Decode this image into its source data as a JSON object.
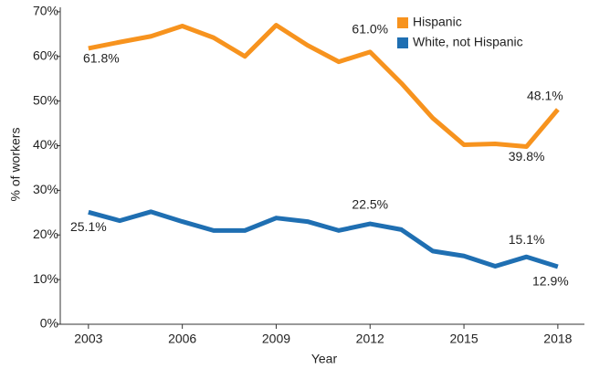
{
  "chart_data": {
    "type": "line",
    "x_label": "Year",
    "y_label": "% of workers",
    "x": [
      2003,
      2004,
      2005,
      2006,
      2007,
      2008,
      2009,
      2010,
      2011,
      2012,
      2013,
      2014,
      2015,
      2016,
      2017,
      2018
    ],
    "series": [
      {
        "name": "Hispanic",
        "color": "#f7931e",
        "values": [
          61.8,
          63.2,
          64.5,
          66.8,
          64.2,
          60.0,
          67.0,
          62.5,
          58.8,
          61.0,
          54.0,
          46.2,
          40.2,
          40.4,
          39.8,
          48.1
        ],
        "value_labels": [
          "61.8%",
          null,
          null,
          null,
          null,
          null,
          null,
          null,
          null,
          "61.0%",
          null,
          null,
          null,
          null,
          "39.8%",
          "48.1%"
        ]
      },
      {
        "name": "White, not Hispanic",
        "color": "#1f6fb2",
        "values": [
          25.1,
          23.2,
          25.2,
          23.0,
          21.0,
          21.0,
          23.8,
          23.0,
          21.0,
          22.5,
          21.2,
          16.4,
          15.3,
          13.0,
          15.1,
          12.9
        ],
        "value_labels": [
          "25.1%",
          null,
          null,
          null,
          null,
          null,
          null,
          null,
          null,
          "22.5%",
          null,
          null,
          null,
          null,
          "15.1%",
          "12.9%"
        ]
      }
    ],
    "xlim": [
      2002.1,
      2018.85
    ],
    "xticks": [
      2003,
      2006,
      2009,
      2012,
      2015,
      2018
    ],
    "ylim": [
      0,
      71
    ],
    "yticks": [
      {
        "value": 0,
        "label": "0%"
      },
      {
        "value": 10,
        "label": "10%"
      },
      {
        "value": 20,
        "label": "20%"
      },
      {
        "value": 30,
        "label": "30%"
      },
      {
        "value": 40,
        "label": "40%"
      },
      {
        "value": 50,
        "label": "50%"
      },
      {
        "value": 60,
        "label": "60%"
      },
      {
        "value": 70,
        "label": "70%"
      }
    ],
    "grid": false,
    "legend": "upper right"
  }
}
